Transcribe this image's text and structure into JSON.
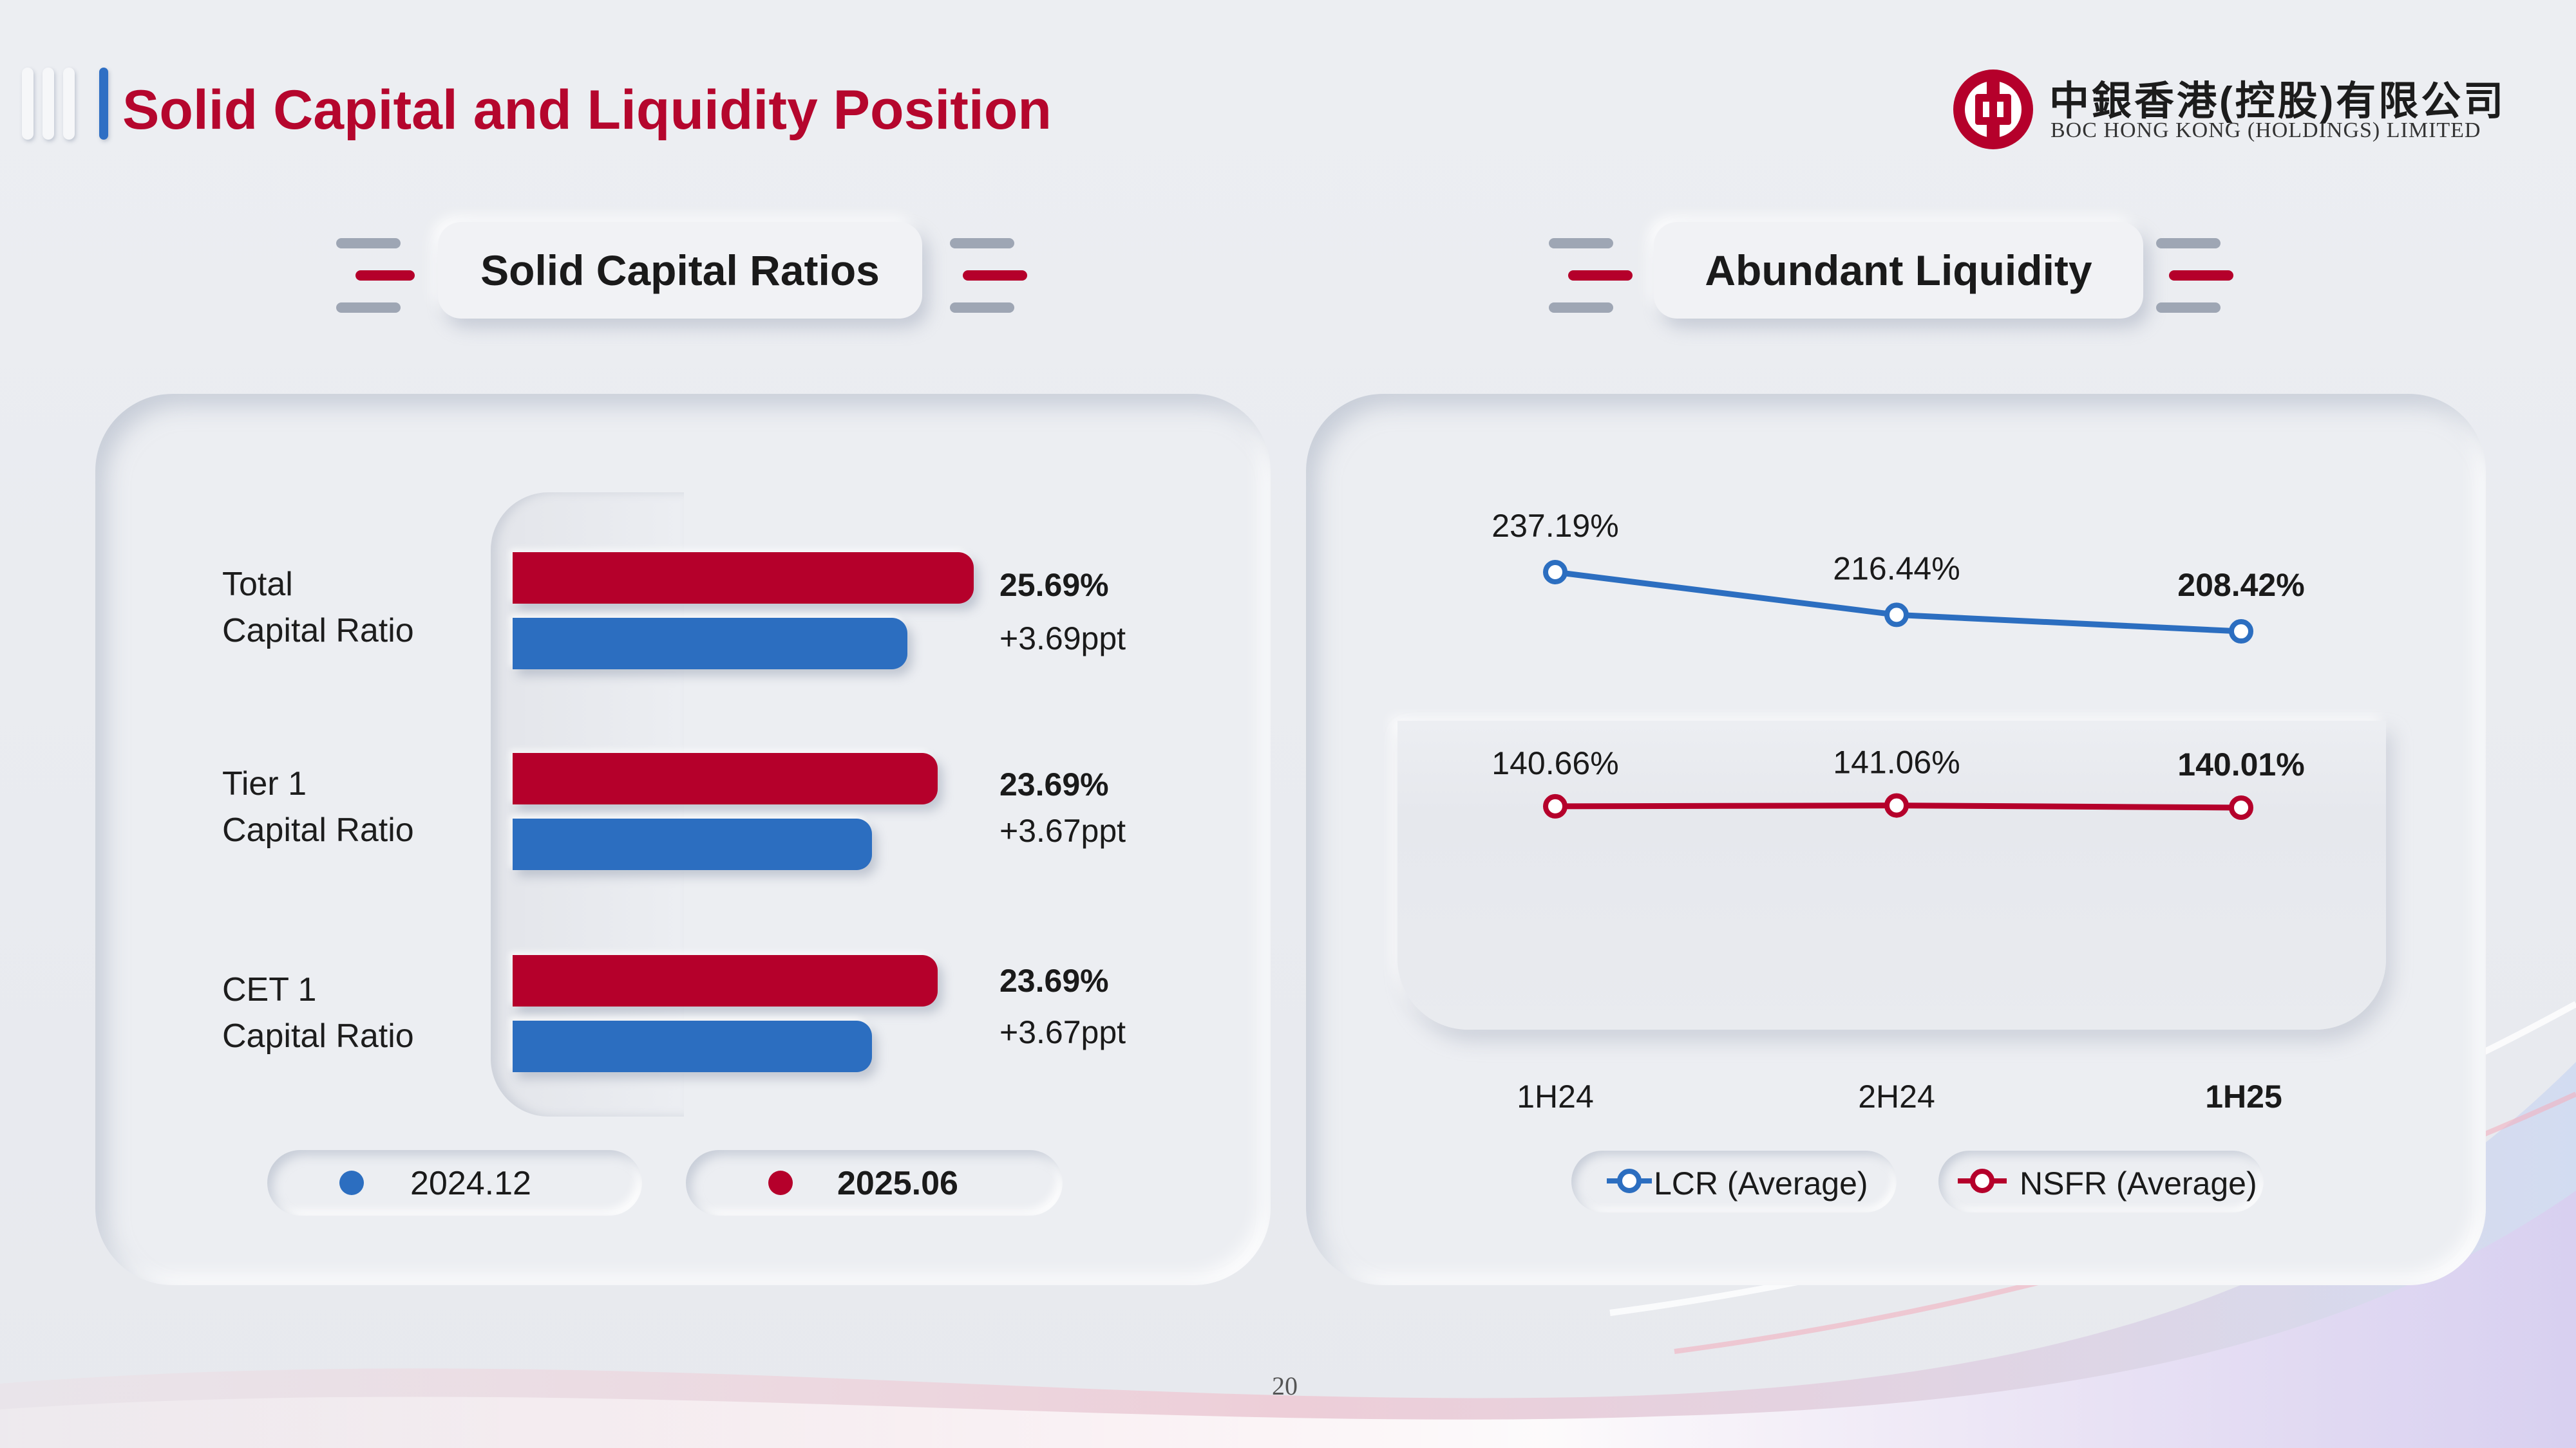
{
  "page": {
    "title": "Solid Capital and Liquidity Position",
    "page_number": "20"
  },
  "logo": {
    "name_cn": "中銀香港(控股)有限公司",
    "name_en": "BOC HONG KONG (HOLDINGS) LIMITED"
  },
  "colors": {
    "red": "#b5002b",
    "blue": "#2c6ec0",
    "title_red": "#b5062d"
  },
  "capital": {
    "section_title": "Solid Capital Ratios",
    "rows": [
      {
        "label_line1": "Total",
        "label_line2": "Capital Ratio",
        "value_2025": "25.69%",
        "change": "+3.69ppt"
      },
      {
        "label_line1": "Tier 1",
        "label_line2": "Capital Ratio",
        "value_2025": "23.69%",
        "change": "+3.67ppt"
      },
      {
        "label_line1": "CET 1",
        "label_line2": "Capital Ratio",
        "value_2025": "23.69%",
        "change": "+3.67ppt"
      }
    ],
    "legend": {
      "series_2024": "2024.12",
      "series_2025": "2025.06"
    }
  },
  "liquidity": {
    "section_title": "Abundant Liquidity",
    "x_labels": [
      "1H24",
      "2H24",
      "1H25"
    ],
    "lcr_labels": [
      "237.19%",
      "216.44%",
      "208.42%"
    ],
    "nsfr_labels": [
      "140.66%",
      "141.06%",
      "140.01%"
    ],
    "legend": {
      "lcr": "LCR (Average)",
      "nsfr": "NSFR (Average)"
    }
  },
  "chart_data": [
    {
      "type": "bar",
      "title": "Solid Capital Ratios",
      "orientation": "horizontal",
      "categories": [
        "Total Capital Ratio",
        "Tier 1 Capital Ratio",
        "CET 1 Capital Ratio"
      ],
      "series": [
        {
          "name": "2024.12",
          "values": [
            22.0,
            20.02,
            20.02
          ]
        },
        {
          "name": "2025.06",
          "values": [
            25.69,
            23.69,
            23.69
          ]
        }
      ],
      "annotations": [
        "+3.69ppt",
        "+3.67ppt",
        "+3.67ppt"
      ],
      "unit": "%",
      "xlim": [
        0,
        25.69
      ],
      "legend_position": "bottom"
    },
    {
      "type": "line",
      "title": "Abundant Liquidity",
      "categories": [
        "1H24",
        "2H24",
        "1H25"
      ],
      "series": [
        {
          "name": "LCR (Average)",
          "values": [
            237.19,
            216.44,
            208.42
          ]
        },
        {
          "name": "NSFR (Average)",
          "values": [
            140.66,
            141.06,
            140.01
          ]
        }
      ],
      "unit": "%",
      "ylim": [
        100,
        260
      ],
      "legend_position": "bottom"
    }
  ]
}
